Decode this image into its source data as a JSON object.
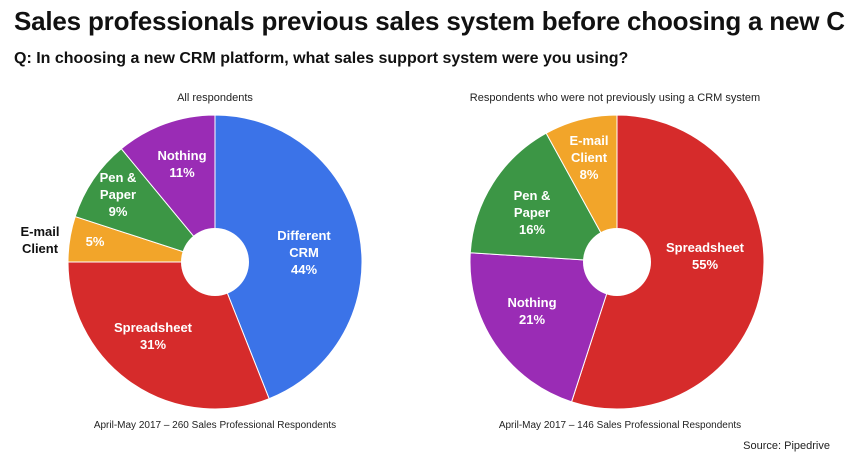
{
  "title": "Sales professionals previous sales system before choosing a new CRM",
  "question": "Q: In choosing a new CRM platform, what sales support system were you using?",
  "source": "Source: Pipedrive",
  "chart_data": [
    {
      "type": "pie",
      "title": "All respondents",
      "footnote": "April-May 2017 – 260 Sales Professional Respondents",
      "slices": [
        {
          "label": "Different CRM",
          "value": 44,
          "display": "44%",
          "color": "#3b73e8"
        },
        {
          "label": "Spreadsheet",
          "value": 31,
          "display": "31%",
          "color": "#d62b2b"
        },
        {
          "label": "E-mail Client",
          "value": 5,
          "display": "5%",
          "color": "#f2a52a"
        },
        {
          "label": "Pen & Paper",
          "value": 9,
          "display": "9%",
          "color": "#3c9645"
        },
        {
          "label": "Nothing",
          "value": 11,
          "display": "11%",
          "color": "#9a2cb5"
        }
      ]
    },
    {
      "type": "pie",
      "title": "Respondents who were not previously using a CRM system",
      "footnote": "April-May 2017 – 146 Sales Professional Respondents",
      "slices": [
        {
          "label": "Spreadsheet",
          "value": 55,
          "display": "55%",
          "color": "#d62b2b"
        },
        {
          "label": "Nothing",
          "value": 21,
          "display": "21%",
          "color": "#9a2cb5"
        },
        {
          "label": "Pen & Paper",
          "value": 16,
          "display": "16%",
          "color": "#3c9645"
        },
        {
          "label": "E-mail Client",
          "value": 8,
          "display": "8%",
          "color": "#f2a52a"
        }
      ]
    }
  ]
}
